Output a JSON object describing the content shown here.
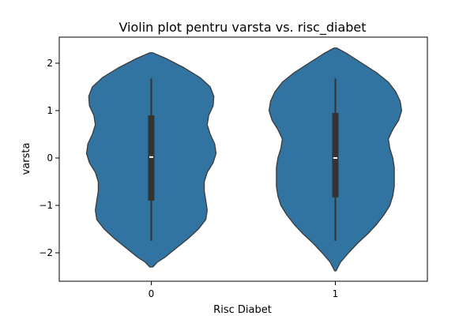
{
  "chart_data": {
    "type": "violin",
    "title": "Violin plot pentru varsta vs. risc_diabet",
    "xlabel": "Risc Diabet",
    "ylabel": "varsta",
    "categories": [
      "0",
      "1"
    ],
    "ylim": [
      -2.6,
      2.55
    ],
    "yticks": [
      {
        "value": 2,
        "label": "2"
      },
      {
        "value": 1,
        "label": "1"
      },
      {
        "value": 0,
        "label": "0"
      },
      {
        "value": -1,
        "label": "−1"
      },
      {
        "value": -2,
        "label": "−2"
      }
    ],
    "grid": false,
    "colors": {
      "violin": "#3274a1",
      "edge": "#3b3b3b",
      "box": "#333333",
      "median": "#ffffff"
    },
    "violins": [
      {
        "category": "0",
        "y_min": -2.3,
        "y_max": 2.22,
        "box": {
          "whisker_low": -1.75,
          "q1": -0.9,
          "median": 0.02,
          "q3": 0.9,
          "whisker_high": 1.68
        },
        "density": [
          [
            2.22,
            0.02
          ],
          [
            2.1,
            0.2
          ],
          [
            1.9,
            0.45
          ],
          [
            1.7,
            0.66
          ],
          [
            1.5,
            0.8
          ],
          [
            1.3,
            0.85
          ],
          [
            1.1,
            0.84
          ],
          [
            0.9,
            0.78
          ],
          [
            0.7,
            0.76
          ],
          [
            0.5,
            0.8
          ],
          [
            0.3,
            0.86
          ],
          [
            0.1,
            0.88
          ],
          [
            -0.1,
            0.84
          ],
          [
            -0.3,
            0.76
          ],
          [
            -0.5,
            0.72
          ],
          [
            -0.7,
            0.72
          ],
          [
            -0.9,
            0.74
          ],
          [
            -1.1,
            0.76
          ],
          [
            -1.3,
            0.74
          ],
          [
            -1.5,
            0.64
          ],
          [
            -1.7,
            0.5
          ],
          [
            -1.9,
            0.34
          ],
          [
            -2.1,
            0.18
          ],
          [
            -2.2,
            0.08
          ],
          [
            -2.3,
            0.02
          ]
        ]
      },
      {
        "category": "1",
        "y_min": -2.38,
        "y_max": 2.32,
        "box": {
          "whisker_low": -1.75,
          "q1": -0.83,
          "median": 0.0,
          "q3": 0.95,
          "whisker_high": 1.68
        },
        "density": [
          [
            2.32,
            0.02
          ],
          [
            2.2,
            0.16
          ],
          [
            2.0,
            0.36
          ],
          [
            1.8,
            0.56
          ],
          [
            1.6,
            0.72
          ],
          [
            1.4,
            0.82
          ],
          [
            1.2,
            0.88
          ],
          [
            1.0,
            0.9
          ],
          [
            0.8,
            0.86
          ],
          [
            0.6,
            0.78
          ],
          [
            0.4,
            0.72
          ],
          [
            0.2,
            0.74
          ],
          [
            0.0,
            0.78
          ],
          [
            -0.2,
            0.8
          ],
          [
            -0.4,
            0.8
          ],
          [
            -0.6,
            0.8
          ],
          [
            -0.8,
            0.78
          ],
          [
            -1.0,
            0.74
          ],
          [
            -1.2,
            0.66
          ],
          [
            -1.4,
            0.56
          ],
          [
            -1.6,
            0.44
          ],
          [
            -1.8,
            0.3
          ],
          [
            -2.0,
            0.18
          ],
          [
            -2.2,
            0.07
          ],
          [
            -2.38,
            0.01
          ]
        ]
      }
    ]
  }
}
